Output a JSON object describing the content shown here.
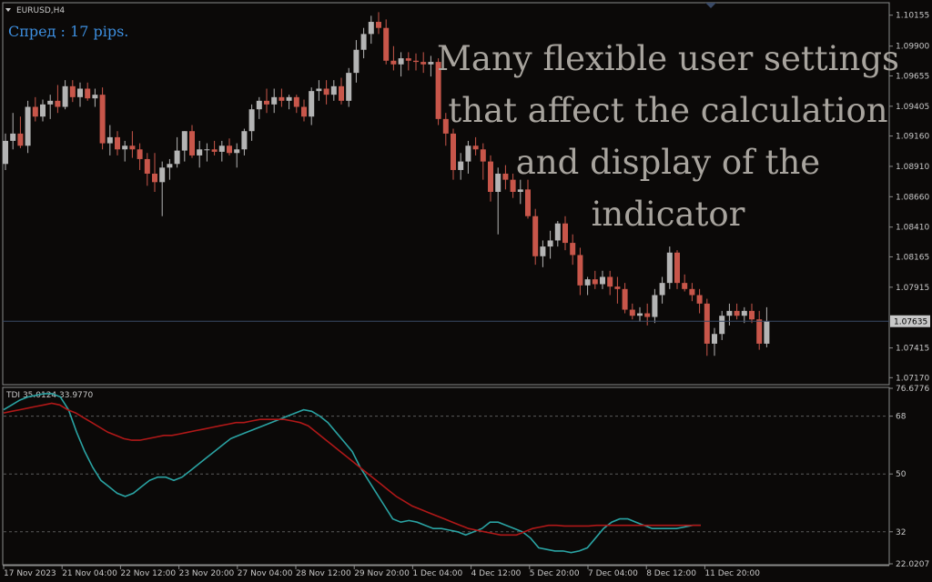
{
  "chart_data": [
    {
      "type": "candlestick",
      "symbol_label": "EURUSD,H4",
      "spread_text": "Спред : 17 pips.",
      "annotation": "Many flexible user settings that affect the calculation and display of the indicator",
      "y_ticks": [
        "1.10155",
        "1.09900",
        "1.09655",
        "1.09405",
        "1.09160",
        "1.08910",
        "1.08660",
        "1.08410",
        "1.08165",
        "1.07915",
        "1.07415",
        "1.07170"
      ],
      "ylim": [
        1.0712,
        1.1025
      ],
      "current_price": 1.07635,
      "current_price_label": "1.07635",
      "colors": {
        "bull": "#b4b4b4",
        "bear": "#c8564a",
        "background": "#0b0908",
        "grid": "#3a3a3a",
        "price_line": "#3a4a66"
      },
      "candles": [
        [
          1.0893,
          1.0918,
          1.0888,
          1.0912
        ],
        [
          1.0912,
          1.0935,
          1.0905,
          1.0918
        ],
        [
          1.0918,
          1.0932,
          1.0906,
          1.0908
        ],
        [
          1.0908,
          1.0945,
          1.0902,
          1.094
        ],
        [
          1.094,
          1.0948,
          1.0928,
          1.0932
        ],
        [
          1.0932,
          1.0946,
          1.0928,
          1.0942
        ],
        [
          1.0942,
          1.095,
          1.093,
          1.0945
        ],
        [
          1.0945,
          1.0958,
          1.0935,
          1.094
        ],
        [
          1.094,
          1.0962,
          1.0938,
          1.0957
        ],
        [
          1.0957,
          1.0962,
          1.0944,
          1.0948
        ],
        [
          1.0948,
          1.096,
          1.094,
          1.0955
        ],
        [
          1.0955,
          1.096,
          1.0945,
          1.0947
        ],
        [
          1.0947,
          1.0955,
          1.094,
          1.095
        ],
        [
          1.095,
          1.0956,
          1.0905,
          1.091
        ],
        [
          1.091,
          1.0925,
          1.09,
          1.0915
        ],
        [
          1.0915,
          1.092,
          1.09,
          1.0905
        ],
        [
          1.0905,
          1.0912,
          1.0895,
          1.0908
        ],
        [
          1.0908,
          1.092,
          1.0898,
          1.0905
        ],
        [
          1.0905,
          1.091,
          1.0888,
          1.0897
        ],
        [
          1.0897,
          1.0902,
          1.0875,
          1.0885
        ],
        [
          1.0885,
          1.0902,
          1.087,
          1.0878
        ],
        [
          1.0878,
          1.0895,
          1.085,
          1.089
        ],
        [
          1.089,
          1.0897,
          1.088,
          1.0893
        ],
        [
          1.0893,
          1.0915,
          1.089,
          1.0904
        ],
        [
          1.0904,
          1.092,
          1.0895,
          1.092
        ],
        [
          1.092,
          1.0925,
          1.0898,
          1.09
        ],
        [
          1.09,
          1.0912,
          1.089,
          1.0905
        ],
        [
          1.0905,
          1.091,
          1.0895,
          1.0905
        ],
        [
          1.0905,
          1.0912,
          1.09,
          1.0903
        ],
        [
          1.0903,
          1.0912,
          1.0895,
          1.0908
        ],
        [
          1.0908,
          1.0914,
          1.09,
          1.0902
        ],
        [
          1.0902,
          1.091,
          1.089,
          1.0905
        ],
        [
          1.0905,
          1.0922,
          1.09,
          1.092
        ],
        [
          1.092,
          1.0942,
          1.0912,
          1.0938
        ],
        [
          1.0938,
          1.0948,
          1.093,
          1.0945
        ],
        [
          1.0945,
          1.0955,
          1.0935,
          1.0942
        ],
        [
          1.0942,
          1.0955,
          1.0935,
          1.0948
        ],
        [
          1.0948,
          1.0955,
          1.094,
          1.0945
        ],
        [
          1.0945,
          1.095,
          1.0938,
          1.0948
        ],
        [
          1.0948,
          1.095,
          1.0935,
          1.094
        ],
        [
          1.094,
          1.0946,
          1.0928,
          1.0932
        ],
        [
          1.0932,
          1.0956,
          1.0925,
          1.0953
        ],
        [
          1.0953,
          1.0962,
          1.0945,
          1.0955
        ],
        [
          1.0955,
          1.0962,
          1.0942,
          1.095
        ],
        [
          1.095,
          1.0962,
          1.0945,
          1.0957
        ],
        [
          1.0957,
          1.0964,
          1.0942,
          1.0945
        ],
        [
          1.0945,
          1.0972,
          1.094,
          1.0968
        ],
        [
          1.0968,
          1.0995,
          1.096,
          1.0987
        ],
        [
          1.0987,
          1.1005,
          1.098,
          1.1
        ],
        [
          1.1,
          1.1015,
          1.0992,
          1.101
        ],
        [
          1.101,
          1.1018,
          1.1,
          1.1005
        ],
        [
          1.1005,
          1.1012,
          1.0975,
          1.0978
        ],
        [
          1.0978,
          1.099,
          1.097,
          1.0975
        ],
        [
          1.0975,
          1.0985,
          1.0965,
          1.098
        ],
        [
          1.098,
          1.0985,
          1.097,
          1.0978
        ],
        [
          1.0978,
          1.0984,
          1.097,
          1.0977
        ],
        [
          1.0977,
          1.0985,
          1.0968,
          1.0975
        ],
        [
          1.0975,
          1.0982,
          1.0965,
          1.0977
        ],
        [
          1.0977,
          1.098,
          1.0925,
          1.093
        ],
        [
          1.093,
          1.0935,
          1.0908,
          1.0918
        ],
        [
          1.0918,
          1.0922,
          1.088,
          1.0888
        ],
        [
          1.0888,
          1.0902,
          1.088,
          1.0895
        ],
        [
          1.0895,
          1.0912,
          1.0885,
          1.0908
        ],
        [
          1.0908,
          1.0915,
          1.09,
          1.0905
        ],
        [
          1.0905,
          1.091,
          1.088,
          1.0895
        ],
        [
          1.0895,
          1.09,
          1.0862,
          1.087
        ],
        [
          1.087,
          1.089,
          1.0835,
          1.0885
        ],
        [
          1.0885,
          1.0892,
          1.0872,
          1.088
        ],
        [
          1.088,
          1.0885,
          1.0865,
          1.087
        ],
        [
          1.087,
          1.088,
          1.086,
          1.0872
        ],
        [
          1.0872,
          1.088,
          1.0848,
          1.085
        ],
        [
          1.085,
          1.0856,
          1.081,
          1.0817
        ],
        [
          1.0817,
          1.083,
          1.0808,
          1.0825
        ],
        [
          1.0825,
          1.0838,
          1.0815,
          1.083
        ],
        [
          1.083,
          1.0846,
          1.0825,
          1.0844
        ],
        [
          1.0844,
          1.085,
          1.0822,
          1.0828
        ],
        [
          1.0828,
          1.0835,
          1.081,
          1.0818
        ],
        [
          1.0818,
          1.0824,
          1.0785,
          1.0793
        ],
        [
          1.0793,
          1.08,
          1.0785,
          1.0798
        ],
        [
          1.0798,
          1.0805,
          1.079,
          1.0794
        ],
        [
          1.0794,
          1.0805,
          1.079,
          1.08
        ],
        [
          1.08,
          1.0805,
          1.0785,
          1.0792
        ],
        [
          1.0792,
          1.08,
          1.0778,
          1.079
        ],
        [
          1.079,
          1.0795,
          1.077,
          1.0773
        ],
        [
          1.0773,
          1.0778,
          1.0765,
          1.0768
        ],
        [
          1.0768,
          1.0775,
          1.0763,
          1.077
        ],
        [
          1.077,
          1.0778,
          1.076,
          1.0767
        ],
        [
          1.0767,
          1.079,
          1.0762,
          1.0785
        ],
        [
          1.0785,
          1.08,
          1.0778,
          1.0795
        ],
        [
          1.0795,
          1.0825,
          1.079,
          1.082
        ],
        [
          1.082,
          1.0822,
          1.079,
          1.0795
        ],
        [
          1.0795,
          1.0802,
          1.0788,
          1.079
        ],
        [
          1.079,
          1.0795,
          1.078,
          1.0785
        ],
        [
          1.0785,
          1.079,
          1.077,
          1.0778
        ],
        [
          1.0778,
          1.0782,
          1.0735,
          1.0745
        ],
        [
          1.0745,
          1.0758,
          1.0735,
          1.0753
        ],
        [
          1.0753,
          1.0772,
          1.0748,
          1.0768
        ],
        [
          1.0768,
          1.0778,
          1.076,
          1.0772
        ],
        [
          1.0772,
          1.0778,
          1.0765,
          1.0768
        ],
        [
          1.0768,
          1.0775,
          1.0762,
          1.0772
        ],
        [
          1.0772,
          1.0778,
          1.0762,
          1.0765
        ],
        [
          1.0765,
          1.0772,
          1.074,
          1.0745
        ],
        [
          1.0745,
          1.0775,
          1.0742,
          1.07635
        ]
      ],
      "x_tick_labels": [
        "17 Nov 2023",
        "21 Nov 04:00",
        "22 Nov 12:00",
        "23 Nov 20:00",
        "27 Nov 04:00",
        "28 Nov 12:00",
        "29 Nov 20:00",
        "1 Dec 04:00",
        "4 Dec 12:00",
        "5 Dec 20:00",
        "7 Dec 04:00",
        "8 Dec 12:00",
        "11 Dec 20:00"
      ]
    },
    {
      "type": "line",
      "indicator_label": "TDI 35.0124 33.9770",
      "y_ticks": [
        "76.6776",
        "68",
        "50",
        "32",
        "22.0207"
      ],
      "ylim": [
        22.0207,
        76.6776
      ],
      "levels": [
        68,
        50,
        32
      ],
      "series": [
        {
          "color": "#2aa3a3",
          "values": [
            70,
            71.5,
            73,
            74,
            74.5,
            75,
            75,
            74,
            70,
            63,
            57,
            52,
            48,
            46,
            44,
            43,
            44,
            46,
            48,
            49,
            49,
            48,
            49,
            51,
            53,
            55,
            57,
            59,
            61,
            62,
            63,
            64,
            65,
            66,
            67,
            68,
            69,
            70,
            69.5,
            68,
            66,
            63,
            60,
            57,
            52,
            48,
            44,
            40,
            36,
            35,
            35.5,
            35,
            34,
            33,
            33,
            32.5,
            32,
            31,
            32,
            33,
            35,
            35,
            34,
            33,
            32,
            30,
            27,
            26.5,
            26,
            26,
            25.5,
            26,
            27,
            30,
            33,
            35,
            36,
            36,
            35,
            34,
            33,
            33,
            33,
            33,
            33.5,
            34,
            34
          ]
        },
        {
          "color": "#b01818",
          "values": [
            69,
            69.5,
            70,
            70.5,
            71,
            71.5,
            72,
            71.5,
            70,
            69,
            67.5,
            66,
            64.5,
            63,
            62,
            61,
            60.5,
            60.5,
            61,
            61.5,
            62,
            62,
            62.5,
            63,
            63.5,
            64,
            64.5,
            65,
            65.5,
            66,
            66,
            66.5,
            67,
            67,
            67,
            67,
            66.5,
            66,
            65,
            63,
            61,
            59,
            57,
            55,
            53,
            51,
            49,
            47,
            45,
            43,
            41.5,
            40,
            39,
            38,
            37,
            36,
            35,
            34,
            33,
            32.5,
            32,
            31.5,
            31,
            31,
            31,
            32,
            33,
            33.5,
            34,
            34,
            33.8,
            33.8,
            33.8,
            33.8,
            34,
            34,
            34,
            34,
            34,
            34,
            34,
            34,
            34,
            34,
            34,
            34,
            34,
            34
          ]
        }
      ]
    }
  ]
}
